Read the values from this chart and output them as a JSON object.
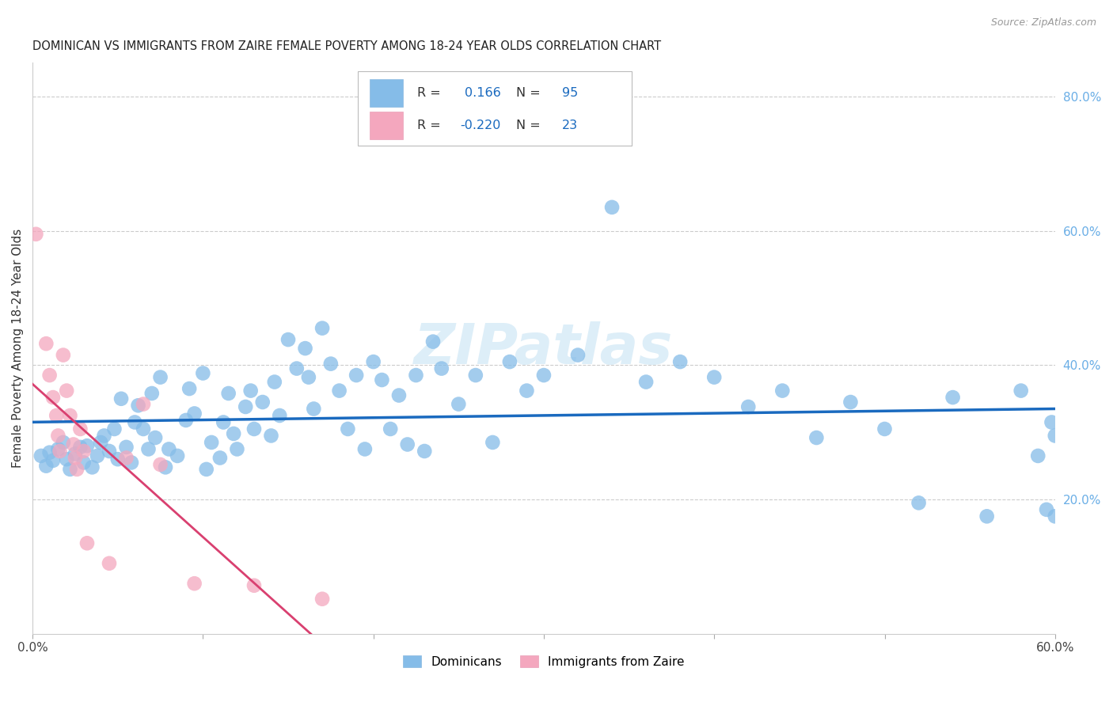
{
  "title": "DOMINICAN VS IMMIGRANTS FROM ZAIRE FEMALE POVERTY AMONG 18-24 YEAR OLDS CORRELATION CHART",
  "source": "Source: ZipAtlas.com",
  "ylabel": "Female Poverty Among 18-24 Year Olds",
  "xlim": [
    0.0,
    0.6
  ],
  "ylim": [
    0.0,
    0.85
  ],
  "x_tick_positions": [
    0.0,
    0.1,
    0.2,
    0.3,
    0.4,
    0.5,
    0.6
  ],
  "x_tick_labels": [
    "0.0%",
    "",
    "",
    "",
    "",
    "",
    "60.0%"
  ],
  "y_ticks_right": [
    0.2,
    0.4,
    0.6,
    0.8
  ],
  "y_tick_labels_right": [
    "20.0%",
    "40.0%",
    "60.0%",
    "80.0%"
  ],
  "dominican_color": "#85bce8",
  "zaire_color": "#f4a7be",
  "dominican_line_color": "#1a6abf",
  "zaire_line_color": "#d94070",
  "zaire_line_color_faint": "#f0b0c0",
  "R_dominican": "0.166",
  "N_dominican": "95",
  "R_zaire": "-0.220",
  "N_zaire": "23",
  "legend_label_1": "Dominicans",
  "legend_label_2": "Immigrants from Zaire",
  "dominican_scatter_x": [
    0.005,
    0.008,
    0.01,
    0.012,
    0.015,
    0.018,
    0.02,
    0.022,
    0.025,
    0.028,
    0.03,
    0.032,
    0.035,
    0.038,
    0.04,
    0.042,
    0.045,
    0.048,
    0.05,
    0.052,
    0.055,
    0.058,
    0.06,
    0.062,
    0.065,
    0.068,
    0.07,
    0.072,
    0.075,
    0.078,
    0.08,
    0.085,
    0.09,
    0.092,
    0.095,
    0.1,
    0.102,
    0.105,
    0.11,
    0.112,
    0.115,
    0.118,
    0.12,
    0.125,
    0.128,
    0.13,
    0.135,
    0.14,
    0.142,
    0.145,
    0.15,
    0.155,
    0.16,
    0.162,
    0.165,
    0.17,
    0.175,
    0.18,
    0.185,
    0.19,
    0.195,
    0.2,
    0.205,
    0.21,
    0.215,
    0.22,
    0.225,
    0.23,
    0.235,
    0.24,
    0.25,
    0.26,
    0.27,
    0.28,
    0.29,
    0.3,
    0.32,
    0.34,
    0.36,
    0.38,
    0.4,
    0.42,
    0.44,
    0.46,
    0.48,
    0.5,
    0.52,
    0.54,
    0.56,
    0.58,
    0.59,
    0.595,
    0.598,
    0.6,
    0.6
  ],
  "dominican_scatter_y": [
    0.265,
    0.25,
    0.27,
    0.258,
    0.275,
    0.285,
    0.26,
    0.245,
    0.268,
    0.278,
    0.255,
    0.28,
    0.248,
    0.265,
    0.285,
    0.295,
    0.272,
    0.305,
    0.26,
    0.35,
    0.278,
    0.255,
    0.315,
    0.34,
    0.305,
    0.275,
    0.358,
    0.292,
    0.382,
    0.248,
    0.275,
    0.265,
    0.318,
    0.365,
    0.328,
    0.388,
    0.245,
    0.285,
    0.262,
    0.315,
    0.358,
    0.298,
    0.275,
    0.338,
    0.362,
    0.305,
    0.345,
    0.295,
    0.375,
    0.325,
    0.438,
    0.395,
    0.425,
    0.382,
    0.335,
    0.455,
    0.402,
    0.362,
    0.305,
    0.385,
    0.275,
    0.405,
    0.378,
    0.305,
    0.355,
    0.282,
    0.385,
    0.272,
    0.435,
    0.395,
    0.342,
    0.385,
    0.285,
    0.405,
    0.362,
    0.385,
    0.415,
    0.635,
    0.375,
    0.405,
    0.382,
    0.338,
    0.362,
    0.292,
    0.345,
    0.305,
    0.195,
    0.352,
    0.175,
    0.362,
    0.265,
    0.185,
    0.315,
    0.175,
    0.295
  ],
  "zaire_scatter_x": [
    0.002,
    0.008,
    0.01,
    0.012,
    0.014,
    0.015,
    0.016,
    0.018,
    0.02,
    0.022,
    0.024,
    0.025,
    0.026,
    0.028,
    0.03,
    0.032,
    0.045,
    0.055,
    0.065,
    0.075,
    0.095,
    0.13,
    0.17
  ],
  "zaire_scatter_y": [
    0.595,
    0.432,
    0.385,
    0.352,
    0.325,
    0.295,
    0.272,
    0.415,
    0.362,
    0.325,
    0.282,
    0.262,
    0.245,
    0.305,
    0.272,
    0.135,
    0.105,
    0.262,
    0.342,
    0.252,
    0.075,
    0.072,
    0.052
  ]
}
